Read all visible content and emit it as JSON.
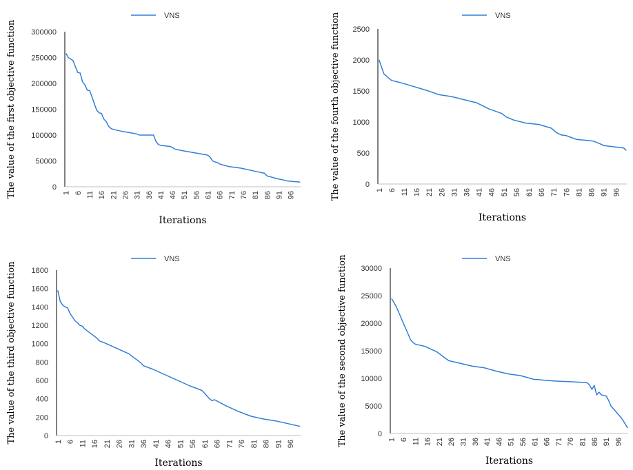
{
  "chart_data": [
    {
      "type": "line",
      "xlabel": "Iterations",
      "ylabel": "The value of the first objective function",
      "ylim": [
        0,
        300000
      ],
      "yticks": [
        0,
        50000,
        100000,
        150000,
        200000,
        250000,
        300000
      ],
      "ytick_labels": [
        "0",
        "50000",
        "100000",
        "150000",
        "200000",
        "250000",
        "300000"
      ],
      "xtick_labels": [
        "1",
        "6",
        "11",
        "16",
        "21",
        "26",
        "31",
        "36",
        "41",
        "46",
        "51",
        "56",
        "61",
        "66",
        "71",
        "76",
        "81",
        "86",
        "91",
        "96"
      ],
      "legend_position": "top",
      "series": [
        {
          "name": "VNS",
          "color": "#2f7ed8",
          "x": [
            1,
            2,
            3,
            4,
            5,
            6,
            7,
            8,
            9,
            10,
            11,
            12,
            13,
            14,
            15,
            16,
            17,
            18,
            19,
            20,
            21,
            25,
            30,
            31,
            32,
            33,
            34,
            35,
            36,
            37,
            38,
            39,
            40,
            41,
            45,
            46,
            47,
            50,
            55,
            60,
            61,
            62,
            63,
            64,
            65,
            66,
            70,
            75,
            80,
            85,
            86,
            90,
            95,
            100
          ],
          "values": [
            258000,
            250000,
            247000,
            244000,
            232000,
            221000,
            220000,
            203000,
            197000,
            187000,
            186000,
            174000,
            160000,
            148000,
            143000,
            142000,
            131000,
            126000,
            117000,
            113000,
            111000,
            107000,
            103000,
            102000,
            100000,
            100000,
            100000,
            100000,
            100000,
            100000,
            100000,
            88000,
            82000,
            80000,
            78000,
            76000,
            73000,
            70000,
            66000,
            62000,
            61000,
            57000,
            50000,
            48000,
            47000,
            44000,
            39000,
            36000,
            31000,
            26000,
            21000,
            16000,
            11000,
            9000
          ]
        }
      ]
    },
    {
      "type": "line",
      "xlabel": "Iterations",
      "ylabel": "The value of the fourth objective function",
      "ylim": [
        0,
        2500
      ],
      "yticks": [
        0,
        500,
        1000,
        1500,
        2000,
        2500
      ],
      "ytick_labels": [
        "0",
        "500",
        "1000",
        "1500",
        "2000",
        "2500"
      ],
      "xtick_labels": [
        "1",
        "6",
        "11",
        "16",
        "21",
        "26",
        "31",
        "36",
        "41",
        "46",
        "51",
        "56",
        "61",
        "66",
        "71",
        "76",
        "81",
        "86",
        "91",
        "96"
      ],
      "legend_position": "top",
      "series": [
        {
          "name": "VNS",
          "color": "#2f7ed8",
          "x": [
            1,
            2,
            3,
            4,
            5,
            6,
            8,
            10,
            15,
            20,
            25,
            30,
            35,
            40,
            45,
            50,
            52,
            55,
            60,
            65,
            70,
            72,
            74,
            76,
            78,
            80,
            85,
            87,
            90,
            91,
            95,
            99,
            100
          ],
          "values": [
            2000,
            1880,
            1770,
            1740,
            1700,
            1670,
            1650,
            1630,
            1570,
            1510,
            1440,
            1410,
            1360,
            1310,
            1210,
            1140,
            1080,
            1030,
            980,
            960,
            900,
            830,
            790,
            780,
            750,
            720,
            700,
            690,
            640,
            620,
            600,
            580,
            540
          ]
        }
      ]
    },
    {
      "type": "line",
      "xlabel": "Iterations",
      "ylabel": "The value of the third objective function",
      "ylim": [
        0,
        1800
      ],
      "yticks": [
        0,
        200,
        400,
        600,
        800,
        1000,
        1200,
        1400,
        1600,
        1800
      ],
      "ytick_labels": [
        "0",
        "200",
        "400",
        "600",
        "800",
        "1000",
        "1200",
        "1400",
        "1600",
        "1800"
      ],
      "xtick_labels": [
        "1",
        "6",
        "11",
        "16",
        "21",
        "26",
        "31",
        "36",
        "41",
        "46",
        "51",
        "56",
        "61",
        "66",
        "71",
        "76",
        "81",
        "86",
        "91",
        "96"
      ],
      "legend_position": "top",
      "series": [
        {
          "name": "VNS",
          "color": "#2f7ed8",
          "x": [
            1,
            2,
            3,
            4,
            5,
            6,
            7,
            8,
            9,
            10,
            11,
            12,
            15,
            16,
            17,
            18,
            20,
            25,
            30,
            33,
            35,
            36,
            40,
            45,
            50,
            55,
            60,
            63,
            64,
            65,
            70,
            75,
            80,
            85,
            90,
            95,
            100
          ],
          "values": [
            1580,
            1460,
            1420,
            1400,
            1390,
            1330,
            1290,
            1250,
            1230,
            1200,
            1190,
            1160,
            1100,
            1080,
            1060,
            1030,
            1010,
            950,
            890,
            830,
            790,
            760,
            720,
            660,
            600,
            540,
            490,
            400,
            380,
            390,
            320,
            260,
            210,
            180,
            160,
            130,
            100
          ]
        }
      ]
    },
    {
      "type": "line",
      "xlabel": "Iterations",
      "ylabel": "The value of the second objective function",
      "ylim": [
        0,
        30000
      ],
      "yticks": [
        0,
        5000,
        10000,
        15000,
        20000,
        25000,
        30000
      ],
      "ytick_labels": [
        "0",
        "5000",
        "10000",
        "15000",
        "20000",
        "25000",
        "30000"
      ],
      "xtick_labels": [
        "1",
        "6",
        "11",
        "16",
        "21",
        "26",
        "31",
        "36",
        "41",
        "46",
        "51",
        "56",
        "61",
        "66",
        "71",
        "76",
        "81",
        "86",
        "91",
        "96"
      ],
      "legend_position": "top",
      "series": [
        {
          "name": "VNS",
          "color": "#2f7ed8",
          "x": [
            1,
            2,
            3,
            4,
            5,
            6,
            7,
            8,
            9,
            10,
            11,
            12,
            15,
            20,
            25,
            30,
            35,
            40,
            45,
            50,
            55,
            60,
            61,
            62,
            65,
            70,
            75,
            80,
            83,
            84,
            85,
            86,
            87,
            88,
            89,
            90,
            91,
            92,
            93,
            94,
            95,
            96,
            97,
            98,
            99,
            100
          ],
          "values": [
            24500,
            23800,
            23000,
            22000,
            21000,
            20000,
            19000,
            18000,
            17000,
            16500,
            16200,
            16100,
            15800,
            14800,
            13200,
            12700,
            12200,
            11900,
            11300,
            10800,
            10500,
            9900,
            9800,
            9800,
            9650,
            9500,
            9400,
            9300,
            9200,
            8800,
            8000,
            8700,
            7000,
            7500,
            7000,
            6900,
            6800,
            6000,
            5000,
            4500,
            4000,
            3500,
            3000,
            2400,
            1700,
            1000
          ]
        }
      ]
    }
  ]
}
